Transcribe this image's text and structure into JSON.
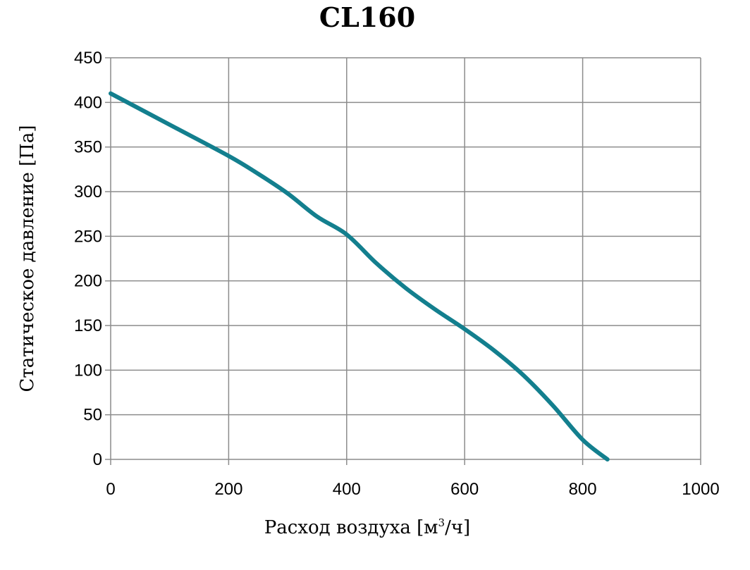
{
  "chart_data": {
    "type": "line",
    "title": "CL160",
    "xlabel": "Расход воздуха [м",
    "xlabel_sup": "3",
    "xlabel_end": "/ч]",
    "ylabel": "Статическое давление [Па]",
    "xlim": [
      0,
      1000
    ],
    "ylim": [
      0,
      450
    ],
    "x_ticks": [
      "0",
      "200",
      "400",
      "600",
      "800",
      "1000"
    ],
    "y_ticks": [
      "0",
      "50",
      "100",
      "150",
      "200",
      "250",
      "300",
      "350",
      "400",
      "450"
    ],
    "grid": true,
    "legend": "none",
    "series": [
      {
        "color": "#137f8e",
        "x": [
          0,
          100,
          200,
          250,
          300,
          350,
          400,
          450,
          500,
          550,
          600,
          650,
          700,
          750,
          800,
          842
        ],
        "y": [
          410,
          375,
          340,
          320,
          298,
          272,
          252,
          220,
          192,
          168,
          146,
          122,
          94,
          60,
          22,
          0
        ]
      }
    ]
  }
}
